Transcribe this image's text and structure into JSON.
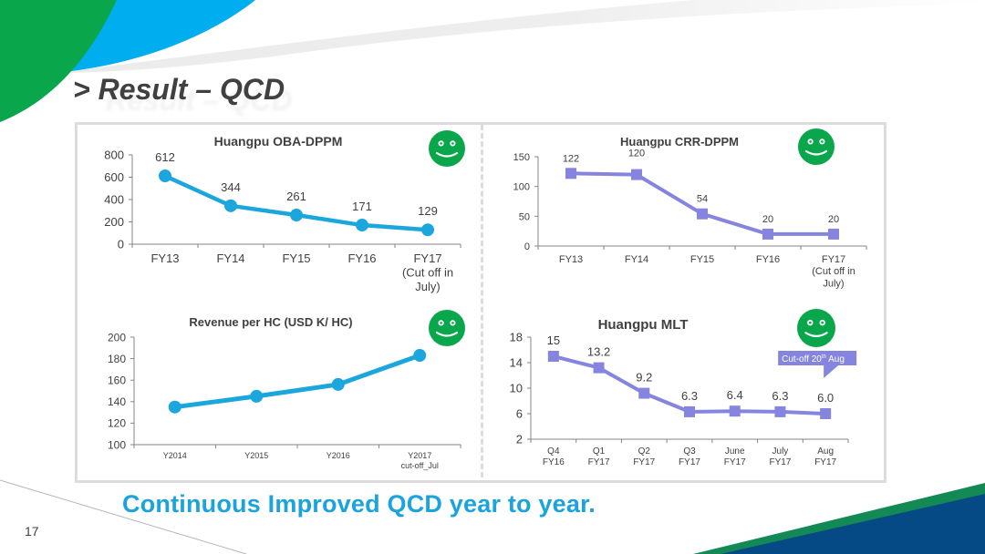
{
  "slide": {
    "title": "> Result – QCD",
    "title_shadow": "Result – QCD",
    "footer": "Continuous Improved QCD year to year.",
    "page_number": "17",
    "colors": {
      "green": "#0aa64b",
      "blue": "#00adef",
      "line_blue": "#1ba6de",
      "line_purple": "#8585e0",
      "footer_blue": "#1aa3dc",
      "navy": "#054a84",
      "teal_green": "#138a55"
    },
    "status_icon": "smiley-face-icon"
  },
  "chart_data": [
    {
      "type": "line",
      "title": "Huangpu OBA-DPPM",
      "categories": [
        "FY13",
        "FY14",
        "FY15",
        "FY16",
        "FY17\n(Cut off in\nJuly)"
      ],
      "values": [
        612,
        344,
        261,
        171,
        129
      ],
      "data_labels": [
        "612",
        "344",
        "261",
        "171",
        "129"
      ],
      "ylim": [
        0,
        800
      ],
      "yticks": [
        "0",
        "200",
        "400",
        "600",
        "800"
      ],
      "marker": "circle",
      "xlabel": "",
      "ylabel": "",
      "grid": false,
      "legend": "none"
    },
    {
      "type": "line",
      "title": "Huangpu CRR-DPPM",
      "categories": [
        "FY13",
        "FY14",
        "FY15",
        "FY16",
        "FY17\n(Cut off in\nJuly)"
      ],
      "values": [
        122,
        120,
        54,
        20,
        20
      ],
      "data_labels": [
        "122",
        "120",
        "54",
        "20",
        "20"
      ],
      "ylim": [
        0,
        150
      ],
      "yticks": [
        "0",
        "50",
        "100",
        "150"
      ],
      "marker": "square",
      "xlabel": "",
      "ylabel": "",
      "grid": false,
      "legend": "none"
    },
    {
      "type": "line",
      "title": "Revenue per HC (USD K/ HC)",
      "categories": [
        "Y2014",
        "Y2015",
        "Y2016",
        "Y2017\ncut-off_Jul"
      ],
      "values": [
        135,
        145,
        156,
        183
      ],
      "data_labels": [],
      "ylim": [
        100,
        200
      ],
      "yticks": [
        "100",
        "120",
        "140",
        "160",
        "180",
        "200"
      ],
      "marker": "circle",
      "xlabel": "",
      "ylabel": "",
      "grid": false,
      "legend": "none"
    },
    {
      "type": "line",
      "title": "Huangpu MLT",
      "categories": [
        "Q4\nFY16",
        "Q1\nFY17",
        "Q2\nFY17",
        "Q3\nFY17",
        "June\nFY17",
        "July\nFY17",
        "Aug\nFY17"
      ],
      "values": [
        15,
        13.2,
        9.2,
        6.3,
        6.4,
        6.3,
        6.0
      ],
      "data_labels": [
        "15",
        "13.2",
        "9.2",
        "6.3",
        "6.4",
        "6.3",
        "6.0"
      ],
      "ylim": [
        2,
        18
      ],
      "yticks": [
        "2",
        "6",
        "10",
        "14",
        "18"
      ],
      "marker": "square",
      "annotation": {
        "text": "Cut-off 20",
        "sup": "th",
        "suffix": " Aug",
        "points_to": "Aug\nFY17"
      },
      "xlabel": "",
      "ylabel": "",
      "grid": false,
      "legend": "none"
    }
  ]
}
